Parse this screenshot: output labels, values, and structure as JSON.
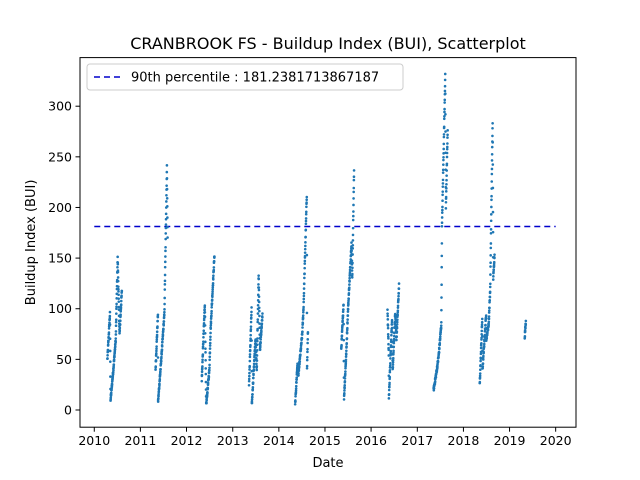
{
  "chart_data": {
    "type": "scatter",
    "title": "CRANBROOK FS - Buildup Index (BUI), Scatterplot",
    "xlabel": "Date",
    "ylabel": "Buildup Index (BUI)",
    "xlim": [
      "2009-09-10",
      "2020-06-10"
    ],
    "ylim": [
      -17,
      348
    ],
    "x_ticks": [
      "2010",
      "2011",
      "2012",
      "2013",
      "2014",
      "2015",
      "2016",
      "2017",
      "2018",
      "2019",
      "2020"
    ],
    "y_ticks": [
      0,
      50,
      100,
      150,
      200,
      250,
      300
    ],
    "grid": false,
    "legend_position": "top-left",
    "reference_line": {
      "label": "90th percentile : 181.2381713867187",
      "value": 181.2381713867187,
      "color": "#0000cc",
      "style": "dashed",
      "x_range": [
        "2010-01-01",
        "2020-01-01"
      ]
    },
    "series": [
      {
        "color": "#1f77b4",
        "marker_radius": 1.3,
        "segments": [
          [
            "2010-04-15",
            50
          ],
          [
            "2010-05-05",
            95
          ],
          [
            "2010-05-10",
            10
          ],
          [
            "2010-06-01",
            40
          ],
          [
            "2010-06-20",
            70
          ],
          [
            "2010-07-05",
            150
          ],
          [
            "2010-07-20",
            75
          ],
          [
            "2010-08-08",
            120
          ],
          [
            "2011-05-01",
            40
          ],
          [
            "2011-05-20",
            95
          ],
          [
            "2011-05-21",
            8
          ],
          [
            "2011-06-15",
            50
          ],
          [
            "2011-07-10",
            95
          ],
          [
            "2011-07-30",
            240
          ],
          [
            "2011-08-05",
            160
          ],
          [
            "2012-05-01",
            30
          ],
          [
            "2012-05-25",
            105
          ],
          [
            "2012-06-05",
            5
          ],
          [
            "2012-06-30",
            40
          ],
          [
            "2012-07-10",
            80
          ],
          [
            "2012-08-10",
            155
          ],
          [
            "2013-05-10",
            25
          ],
          [
            "2013-05-30",
            100
          ],
          [
            "2013-06-01",
            5
          ],
          [
            "2013-06-30",
            70
          ],
          [
            "2013-07-10",
            40
          ],
          [
            "2013-07-25",
            133
          ],
          [
            "2013-08-05",
            60
          ],
          [
            "2013-08-25",
            95
          ],
          [
            "2014-05-10",
            5
          ],
          [
            "2014-05-28",
            45
          ],
          [
            "2014-06-05",
            35
          ],
          [
            "2014-07-05",
            75
          ],
          [
            "2014-07-15",
            100
          ],
          [
            "2014-08-10",
            212
          ],
          [
            "2014-08-12",
            40
          ],
          [
            "2014-08-20",
            82
          ],
          [
            "2015-05-10",
            60
          ],
          [
            "2015-05-28",
            105
          ],
          [
            "2015-06-01",
            12
          ],
          [
            "2015-06-20",
            60
          ],
          [
            "2015-07-01",
            95
          ],
          [
            "2015-07-30",
            165
          ],
          [
            "2015-08-05",
            130
          ],
          [
            "2015-08-20",
            242
          ],
          [
            "2016-05-10",
            100
          ],
          [
            "2016-05-20",
            55
          ],
          [
            "2016-05-21",
            12
          ],
          [
            "2016-06-15",
            90
          ],
          [
            "2016-06-20",
            40
          ],
          [
            "2016-07-10",
            95
          ],
          [
            "2016-07-20",
            70
          ],
          [
            "2016-08-10",
            125
          ],
          [
            "2017-05-10",
            20
          ],
          [
            "2017-06-05",
            40
          ],
          [
            "2017-06-20",
            55
          ],
          [
            "2017-07-10",
            85
          ],
          [
            "2017-07-15",
            180
          ],
          [
            "2017-08-10",
            330
          ],
          [
            "2017-08-15",
            200
          ],
          [
            "2017-08-30",
            280
          ],
          [
            "2018-05-10",
            25
          ],
          [
            "2018-05-30",
            90
          ],
          [
            "2018-06-01",
            40
          ],
          [
            "2018-06-30",
            95
          ],
          [
            "2018-07-01",
            70
          ],
          [
            "2018-07-20",
            85
          ],
          [
            "2018-08-01",
            120
          ],
          [
            "2018-08-20",
            285
          ],
          [
            "2018-08-25",
            130
          ],
          [
            "2018-09-05",
            155
          ],
          [
            "2019-05-01",
            72
          ],
          [
            "2019-05-10",
            88
          ]
        ]
      }
    ]
  }
}
